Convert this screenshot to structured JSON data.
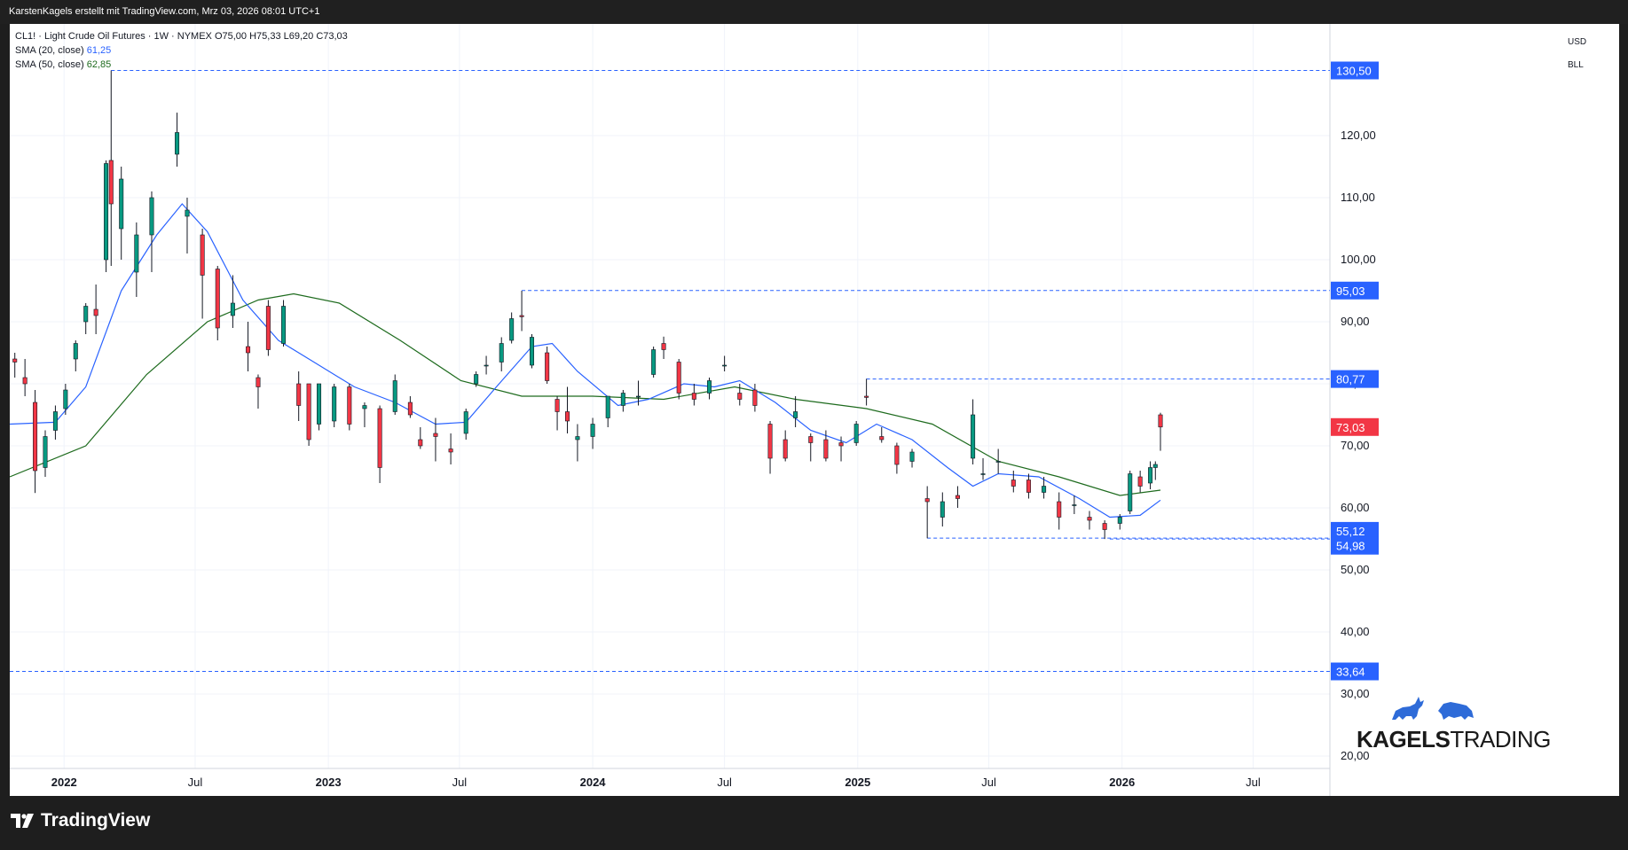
{
  "header": {
    "attribution": "KarstenKagels erstellt mit TradingView.com, Mrz 03, 2026 08:01 UTC+1"
  },
  "legend": {
    "symbol_line": "CL1! · Light Crude Oil Futures · 1W · NYMEX  O75,00  H75,33  L69,20  C73,03",
    "sma20_label": "SMA (20, close)",
    "sma20_value": "61,25",
    "sma50_label": "SMA (50, close)",
    "sma50_value": "62,85"
  },
  "units": {
    "currency": "USD",
    "unit": "BLL"
  },
  "brand": {
    "logo_text_bold": "KAGELS",
    "logo_text_thin": "TRADING",
    "platform": "TradingView"
  },
  "colors": {
    "up": "#089981",
    "down": "#f23645",
    "sma20": "#2962ff",
    "sma50": "#1e6b1e",
    "level_line": "#2962ff",
    "level_label_bg": "#2962ff",
    "last_price_bg": "#f23645"
  },
  "chart_data": {
    "type": "candlestick",
    "symbol": "CL1!",
    "timeframe": "1W",
    "exchange": "NYMEX",
    "ylim": [
      18,
      138
    ],
    "xlim": [
      "2021-10-18",
      "2026-10-15"
    ],
    "y_ticks": [
      "20,00",
      "30,00",
      "40,00",
      "50,00",
      "60,00",
      "70,00",
      "80,00",
      "90,00",
      "100,00",
      "110,00",
      "120,00"
    ],
    "x_ticks": [
      {
        "date": "2022-01-01",
        "label": "2022",
        "bold": true
      },
      {
        "date": "2022-07-01",
        "label": "Jul",
        "bold": false
      },
      {
        "date": "2023-01-01",
        "label": "2023",
        "bold": true
      },
      {
        "date": "2023-07-01",
        "label": "Jul",
        "bold": false
      },
      {
        "date": "2024-01-01",
        "label": "2024",
        "bold": true
      },
      {
        "date": "2024-07-01",
        "label": "Jul",
        "bold": false
      },
      {
        "date": "2025-01-01",
        "label": "2025",
        "bold": true
      },
      {
        "date": "2025-07-01",
        "label": "Jul",
        "bold": false
      },
      {
        "date": "2026-01-01",
        "label": "2026",
        "bold": true
      },
      {
        "date": "2026-07-01",
        "label": "Jul",
        "bold": false
      }
    ],
    "levels": [
      {
        "value": 130.5,
        "label": "130,50",
        "from": "2022-03-07"
      },
      {
        "value": 95.03,
        "label": "95,03",
        "from": "2023-09-25"
      },
      {
        "value": 80.77,
        "label": "80,77",
        "from": "2025-01-13"
      },
      {
        "value": 55.12,
        "label": "55,12",
        "from": "2025-04-07"
      },
      {
        "value": 54.98,
        "label": "54,98",
        "from": "2025-12-15"
      },
      {
        "value": 33.64,
        "label": "33,64",
        "from": "2021-10-18"
      }
    ],
    "last_price": {
      "value": 73.03,
      "label": "73,03"
    },
    "ohlc_last": {
      "open": 75.0,
      "high": 75.33,
      "low": 69.2,
      "close": 73.03
    },
    "sma20_series": [
      [
        "2021-10-18",
        73.5
      ],
      [
        "2021-12-20",
        73.8
      ],
      [
        "2022-01-31",
        79.5
      ],
      [
        "2022-03-21",
        95.0
      ],
      [
        "2022-05-09",
        104.0
      ],
      [
        "2022-06-13",
        109.0
      ],
      [
        "2022-07-18",
        104.5
      ],
      [
        "2022-09-05",
        93.5
      ],
      [
        "2022-10-24",
        87.0
      ],
      [
        "2022-12-12",
        83.5
      ],
      [
        "2023-02-06",
        79.5
      ],
      [
        "2023-04-03",
        77.0
      ],
      [
        "2023-05-29",
        73.5
      ],
      [
        "2023-07-10",
        73.8
      ],
      [
        "2023-08-21",
        79.5
      ],
      [
        "2023-10-09",
        86.0
      ],
      [
        "2023-11-06",
        86.5
      ],
      [
        "2023-12-11",
        82.0
      ],
      [
        "2024-02-05",
        76.5
      ],
      [
        "2024-03-18",
        77.5
      ],
      [
        "2024-05-06",
        80.0
      ],
      [
        "2024-06-17",
        79.5
      ],
      [
        "2024-07-22",
        80.5
      ],
      [
        "2024-09-09",
        77.0
      ],
      [
        "2024-10-28",
        72.5
      ],
      [
        "2024-12-16",
        70.5
      ],
      [
        "2025-01-27",
        73.5
      ],
      [
        "2025-03-17",
        71.0
      ],
      [
        "2025-05-05",
        66.5
      ],
      [
        "2025-06-09",
        63.5
      ],
      [
        "2025-07-14",
        65.5
      ],
      [
        "2025-09-08",
        65.0
      ],
      [
        "2025-11-03",
        61.5
      ],
      [
        "2025-12-15",
        58.5
      ],
      [
        "2026-01-26",
        58.8
      ],
      [
        "2026-02-23",
        61.25
      ]
    ],
    "sma50_series": [
      [
        "2021-10-18",
        65.0
      ],
      [
        "2022-01-31",
        70.0
      ],
      [
        "2022-04-25",
        81.5
      ],
      [
        "2022-07-18",
        90.0
      ],
      [
        "2022-09-26",
        93.5
      ],
      [
        "2022-11-14",
        94.5
      ],
      [
        "2023-01-16",
        93.0
      ],
      [
        "2023-04-10",
        87.0
      ],
      [
        "2023-07-03",
        80.5
      ],
      [
        "2023-09-25",
        78.0
      ],
      [
        "2024-01-01",
        78.0
      ],
      [
        "2024-04-08",
        77.5
      ],
      [
        "2024-07-15",
        79.5
      ],
      [
        "2024-10-07",
        77.5
      ],
      [
        "2025-01-13",
        76.0
      ],
      [
        "2025-04-14",
        73.5
      ],
      [
        "2025-07-14",
        67.5
      ],
      [
        "2025-10-06",
        65.0
      ],
      [
        "2025-12-29",
        62.0
      ],
      [
        "2026-02-23",
        62.85
      ]
    ],
    "candles_sampled": [
      [
        "2021-10-25",
        84.0,
        85.0,
        81.0,
        83.5
      ],
      [
        "2021-11-08",
        81.0,
        84.0,
        78.0,
        80.0
      ],
      [
        "2021-11-22",
        77.0,
        79.0,
        62.4,
        66.0
      ],
      [
        "2021-12-06",
        66.5,
        72.5,
        65.0,
        71.5
      ],
      [
        "2021-12-20",
        72.5,
        76.5,
        71.0,
        75.5
      ],
      [
        "2022-01-03",
        76.0,
        80.0,
        75.0,
        79.0
      ],
      [
        "2022-01-17",
        84.0,
        87.0,
        82.0,
        86.5
      ],
      [
        "2022-01-31",
        90.0,
        93.0,
        88.0,
        92.5
      ],
      [
        "2022-02-14",
        92.0,
        96.0,
        88.0,
        91.0
      ],
      [
        "2022-02-28",
        100.0,
        116.0,
        98.0,
        115.5
      ],
      [
        "2022-03-07",
        116.0,
        130.5,
        99.0,
        109.0
      ],
      [
        "2022-03-21",
        105.0,
        115.0,
        100.0,
        113.0
      ],
      [
        "2022-04-11",
        98.0,
        106.0,
        94.0,
        104.0
      ],
      [
        "2022-05-02",
        104.0,
        111.0,
        98.0,
        110.0
      ],
      [
        "2022-06-06",
        117.0,
        123.7,
        115.0,
        120.5
      ],
      [
        "2022-06-20",
        107.0,
        110.0,
        101.0,
        108.0
      ],
      [
        "2022-07-11",
        104.0,
        105.0,
        90.5,
        97.5
      ],
      [
        "2022-08-01",
        98.5,
        99.0,
        87.0,
        89.0
      ],
      [
        "2022-08-22",
        91.0,
        97.5,
        89.0,
        93.0
      ],
      [
        "2022-09-12",
        86.0,
        90.0,
        82.0,
        85.0
      ],
      [
        "2022-09-26",
        81.0,
        81.5,
        76.0,
        79.5
      ],
      [
        "2022-10-10",
        92.5,
        93.5,
        84.5,
        85.5
      ],
      [
        "2022-10-31",
        86.5,
        93.5,
        86.0,
        92.5
      ],
      [
        "2022-11-21",
        80.0,
        82.0,
        74.0,
        76.5
      ],
      [
        "2022-12-05",
        80.0,
        80.0,
        70.0,
        71.0
      ],
      [
        "2022-12-19",
        73.5,
        80.0,
        72.5,
        80.0
      ],
      [
        "2023-01-09",
        74.0,
        80.0,
        73.0,
        79.5
      ],
      [
        "2023-01-30",
        79.5,
        80.0,
        72.5,
        73.5
      ],
      [
        "2023-02-20",
        76.0,
        77.0,
        73.0,
        76.5
      ],
      [
        "2023-03-13",
        76.0,
        76.5,
        64.0,
        66.5
      ],
      [
        "2023-04-03",
        75.5,
        81.5,
        75.0,
        80.5
      ],
      [
        "2023-04-24",
        77.0,
        78.0,
        74.5,
        75.0
      ],
      [
        "2023-05-08",
        71.0,
        73.0,
        69.5,
        70.0
      ],
      [
        "2023-05-29",
        72.0,
        74.5,
        67.5,
        71.5
      ],
      [
        "2023-06-19",
        69.5,
        72.0,
        67.0,
        69.0
      ],
      [
        "2023-07-10",
        72.0,
        76.0,
        71.0,
        75.5
      ],
      [
        "2023-07-24",
        80.0,
        82.0,
        79.5,
        81.5
      ],
      [
        "2023-08-07",
        83.0,
        84.5,
        81.5,
        83.0
      ],
      [
        "2023-08-28",
        83.5,
        87.5,
        82.0,
        86.5
      ],
      [
        "2023-09-11",
        87.0,
        91.5,
        86.5,
        90.5
      ],
      [
        "2023-09-25",
        91.0,
        95.0,
        88.5,
        90.8
      ],
      [
        "2023-10-09",
        83.0,
        88.0,
        82.5,
        87.5
      ],
      [
        "2023-10-30",
        85.0,
        86.0,
        80.0,
        80.5
      ],
      [
        "2023-11-13",
        77.5,
        78.0,
        72.5,
        75.5
      ],
      [
        "2023-11-27",
        75.5,
        79.5,
        72.0,
        74.0
      ],
      [
        "2023-12-11",
        71.0,
        73.5,
        67.5,
        71.5
      ],
      [
        "2024-01-01",
        71.5,
        74.5,
        69.5,
        73.5
      ],
      [
        "2024-01-22",
        74.5,
        78.0,
        73.0,
        78.0
      ],
      [
        "2024-02-12",
        76.5,
        79.0,
        75.5,
        78.5
      ],
      [
        "2024-03-04",
        78.0,
        80.5,
        76.5,
        78.0
      ],
      [
        "2024-03-25",
        81.5,
        86.0,
        81.0,
        85.5
      ],
      [
        "2024-04-08",
        86.5,
        87.6,
        84.0,
        85.5
      ],
      [
        "2024-04-29",
        83.5,
        84.0,
        77.5,
        78.5
      ],
      [
        "2024-05-20",
        78.5,
        80.0,
        76.5,
        77.5
      ],
      [
        "2024-06-10",
        78.5,
        81.0,
        77.5,
        80.5
      ],
      [
        "2024-07-01",
        83.0,
        84.5,
        82.0,
        83.0
      ],
      [
        "2024-07-22",
        78.5,
        80.0,
        76.5,
        77.5
      ],
      [
        "2024-08-12",
        79.0,
        80.0,
        75.5,
        76.5
      ],
      [
        "2024-09-02",
        73.5,
        74.0,
        65.5,
        68.0
      ],
      [
        "2024-09-23",
        71.0,
        72.5,
        67.5,
        68.0
      ],
      [
        "2024-10-07",
        74.5,
        78.0,
        73.0,
        75.5
      ],
      [
        "2024-10-28",
        71.5,
        72.0,
        67.5,
        70.5
      ],
      [
        "2024-11-18",
        71.0,
        72.5,
        67.5,
        68.0
      ],
      [
        "2024-12-09",
        70.5,
        71.5,
        67.5,
        70.0
      ],
      [
        "2024-12-30",
        70.5,
        74.0,
        70.0,
        73.5
      ],
      [
        "2025-01-13",
        78.0,
        80.8,
        76.5,
        77.8
      ],
      [
        "2025-02-03",
        71.5,
        73.0,
        70.5,
        71.0
      ],
      [
        "2025-02-24",
        70.0,
        70.5,
        65.5,
        67.0
      ],
      [
        "2025-03-17",
        67.5,
        69.5,
        66.5,
        69.0
      ],
      [
        "2025-04-07",
        61.5,
        63.5,
        55.1,
        61.0
      ],
      [
        "2025-04-28",
        58.5,
        62.5,
        57.0,
        61.0
      ],
      [
        "2025-05-19",
        62.0,
        63.5,
        60.0,
        61.5
      ],
      [
        "2025-06-09",
        68.0,
        77.5,
        67.0,
        75.0
      ],
      [
        "2025-06-23",
        65.5,
        68.0,
        64.5,
        65.5
      ],
      [
        "2025-07-14",
        67.5,
        69.5,
        65.5,
        67.5
      ],
      [
        "2025-08-04",
        64.5,
        66.0,
        62.5,
        63.5
      ],
      [
        "2025-08-25",
        64.5,
        65.5,
        61.5,
        62.5
      ],
      [
        "2025-09-15",
        62.5,
        65.0,
        61.5,
        63.5
      ],
      [
        "2025-10-06",
        61.0,
        62.5,
        56.5,
        58.5
      ],
      [
        "2025-10-27",
        60.5,
        62.0,
        59.0,
        60.5
      ],
      [
        "2025-11-17",
        58.5,
        59.5,
        56.5,
        58.0
      ],
      [
        "2025-12-08",
        57.5,
        58.0,
        54.98,
        56.5
      ],
      [
        "2025-12-29",
        57.5,
        59.0,
        56.5,
        58.5
      ],
      [
        "2026-01-12",
        59.5,
        66.0,
        59.0,
        65.5
      ],
      [
        "2026-01-26",
        65.0,
        66.0,
        62.5,
        63.5
      ],
      [
        "2026-02-09",
        64.0,
        67.5,
        63.0,
        66.5
      ],
      [
        "2026-02-16",
        66.5,
        67.5,
        64.5,
        67.0
      ],
      [
        "2026-02-23",
        75.0,
        75.33,
        69.2,
        73.03
      ]
    ]
  }
}
